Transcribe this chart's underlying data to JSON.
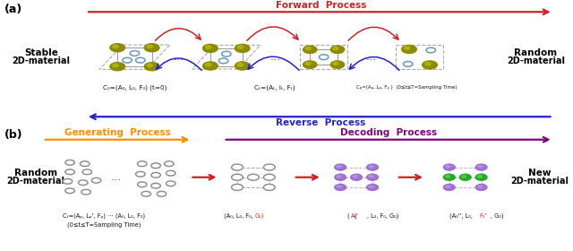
{
  "fig_width": 6.4,
  "fig_height": 2.8,
  "dpi": 100,
  "bg_color": "#FFFFFF",
  "panel_a": {
    "label": "(a)",
    "forward_text": "Forward  Process",
    "reverse_text": "Reverse  Process",
    "forward_color": "#CC2222",
    "reverse_color": "#2222CC",
    "olive_color": "#8B8B00",
    "olive_dark": "#5A5A00",
    "blue_ring_color": "#6699BB",
    "arrow_red": "#CC2222",
    "arrow_blue": "#2222CC",
    "caption0": "C₀=(A₀, L₀, F₀) (t=0)",
    "caption_t": "Cₜ=(Aₜ, Iₜ, Fₜ)",
    "caption_T": "Cₚ=(Aₚ, Lₚ, Fₚ )  (0≤t≤T=Sampling Time)"
  },
  "panel_b": {
    "label": "(b)",
    "generating_text": "Generating  Process",
    "decoding_text": "Decoding  Process",
    "generating_color": "#FF8C00",
    "decoding_color": "#800080",
    "purple_color": "#9966CC",
    "purple_light": "#BB99EE",
    "green_color": "#22AA22",
    "gray_color": "#888888",
    "arrow_red": "#CC2222",
    "caption_gen": "Cₜ=(Aₚ, Lₚ', Fₚ) ⋯ (A₀, L₀, F₀)",
    "caption_gen2": "(0≤t≤T=Sampling Time)",
    "caption_dec1_black": "(A₀, L₀, F₀,",
    "caption_dec1_red": "G₀)",
    "caption_dec2_red": "A₀'",
    "caption_dec2_black": ", L₀, F₀, G₀)",
    "caption_dec3_black1": "(A₀'', L₀,",
    "caption_dec3_red": "F₀'",
    "caption_dec3_black2": ", G₀)"
  }
}
